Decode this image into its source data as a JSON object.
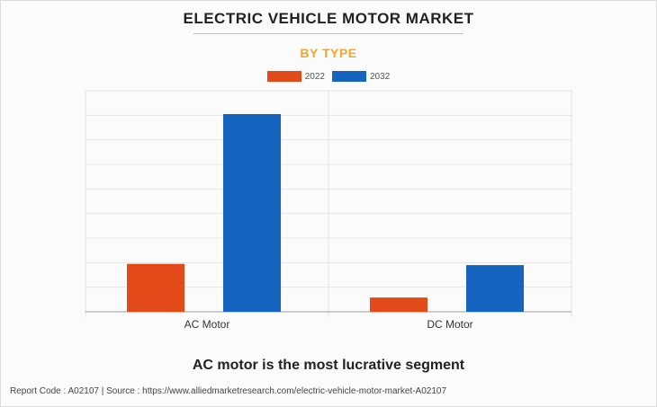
{
  "header": {
    "title": "ELECTRIC VEHICLE MOTOR MARKET",
    "subtitle": "BY TYPE"
  },
  "conclusion": "AC motor is the most lucrative segment",
  "footer": {
    "text": "Report Code : A02107  |  Source : https://www.alliedmarketresearch.com/electric-vehicle-motor-market-A02107"
  },
  "colors": {
    "series_2022": "#e24a1a",
    "series_2032": "#1565c0",
    "subtitle": "#f5a623"
  },
  "chart_data": {
    "type": "bar",
    "title": "ELECTRIC VEHICLE MOTOR MARKET",
    "subtitle": "BY TYPE",
    "categories": [
      "AC Motor",
      "DC Motor"
    ],
    "series": [
      {
        "name": "2022",
        "values": [
          19.5,
          5.8
        ]
      },
      {
        "name": "2032",
        "values": [
          80.5,
          19.0
        ]
      }
    ],
    "xlabel": "",
    "ylabel": "",
    "ylim": [
      0,
      90
    ],
    "grid": true,
    "legend_position": "top-center",
    "y_tick_labels_shown": false
  }
}
